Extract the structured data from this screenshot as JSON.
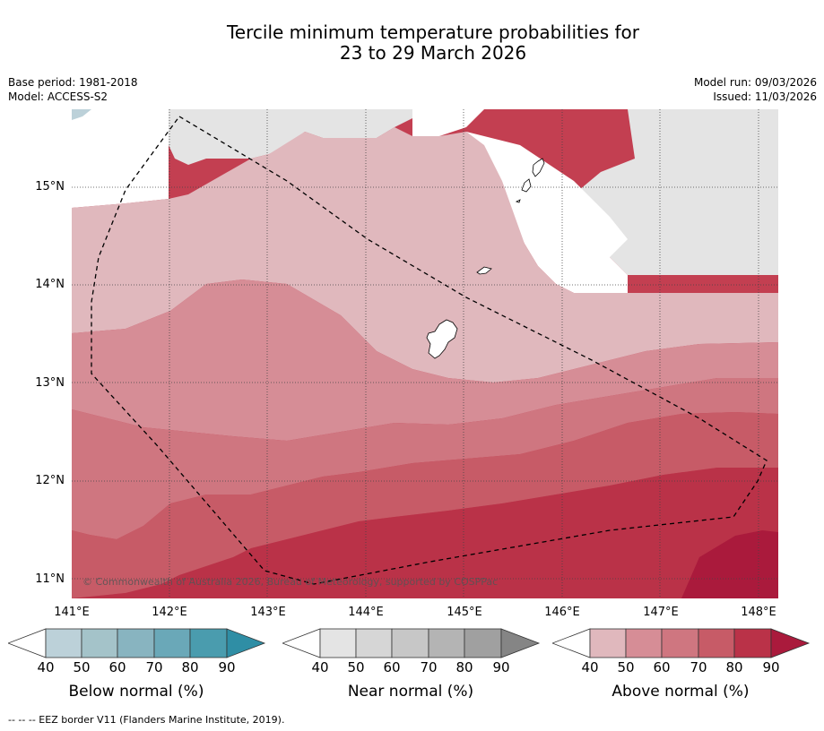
{
  "title_line1": "Tercile minimum temperature probabilities for",
  "title_line2": "23 to 29 March 2026",
  "base_period": "Base period: 1981-2018",
  "model": "Model: ACCESS-S2",
  "model_run": "Model run: 09/03/2026",
  "issued": "Issued: 11/03/2026",
  "lat_labels": [
    "15°N",
    "14°N",
    "13°N",
    "12°N",
    "11°N"
  ],
  "lon_labels": [
    "141°E",
    "142°E",
    "143°E",
    "144°E",
    "145°E",
    "146°E",
    "147°E",
    "148°E"
  ],
  "copyright": "© Commonwealth of Australia 2026, Bureau of Meteorology, supported by COSPPac",
  "colorbars": {
    "below": {
      "title": "Below normal (%)",
      "ticks": [
        "40",
        "50",
        "60",
        "70",
        "80",
        "90"
      ],
      "colors": [
        "#bcd1d9",
        "#a4c3c9",
        "#88b4c0",
        "#6aa8b8",
        "#4a9cae",
        "#2f8ea5"
      ]
    },
    "near": {
      "title": "Near normal (%)",
      "ticks": [
        "40",
        "50",
        "60",
        "70",
        "80",
        "90"
      ],
      "colors": [
        "#e4e4e4",
        "#d6d6d6",
        "#c7c7c7",
        "#b4b4b4",
        "#a0a0a0",
        "#858585"
      ]
    },
    "above": {
      "title": "Above normal (%)",
      "ticks": [
        "40",
        "50",
        "60",
        "70",
        "80",
        "90"
      ],
      "colors": [
        "#e0b8bd",
        "#d68d96",
        "#cf7680",
        "#c75b67",
        "#ba3248",
        "#aa1a3c"
      ]
    }
  },
  "footer": "--  --  -- EEZ border V11 (Flanders Marine Institute, 2019)."
}
